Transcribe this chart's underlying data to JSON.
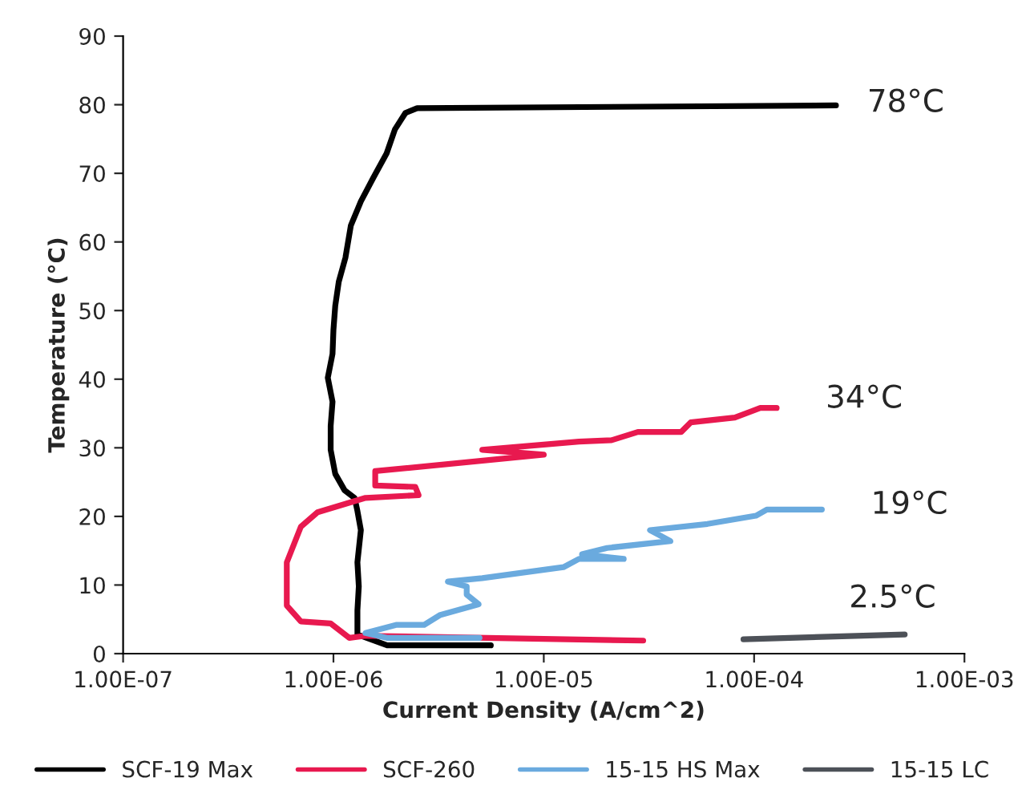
{
  "chart_data": {
    "type": "line",
    "xlabel": "Current Density (A/cm^2)",
    "ylabel": "Temperature (°C)",
    "log": "x",
    "xlim": [
      1e-07,
      0.001
    ],
    "xticks": [
      {
        "value": 1e-07,
        "label": "1.00E-07"
      },
      {
        "value": 1e-06,
        "label": "1.00E-06"
      },
      {
        "value": 1e-05,
        "label": "1.00E-05"
      },
      {
        "value": 0.0001,
        "label": "1.00E-04"
      },
      {
        "value": 0.001,
        "label": "1.00E-03"
      }
    ],
    "ylim": [
      0,
      90
    ],
    "yticks": [
      0,
      10,
      20,
      30,
      40,
      50,
      60,
      70,
      80,
      90
    ],
    "grid": false,
    "legend": "bottom",
    "marker": "none",
    "line_style": "solid",
    "series": [
      {
        "name": "SCF-19 Max",
        "color": "#000000",
        "x": [
          5.6e-06,
          1.8e-06,
          1.3e-06,
          1.3e-06,
          1.32e-06,
          1.3e-06,
          1.35e-06,
          1.3e-06,
          1.26e-06,
          1.13e-06,
          1.02e-06,
          9.7e-07,
          9.7e-07,
          9.9e-07,
          9.4e-07,
          9.9e-07,
          1e-06,
          1.02e-06,
          1.06e-06,
          1.14e-06,
          1.21e-06,
          1.35e-06,
          1.55e-06,
          1.79e-06,
          1.96e-06,
          2.2e-06,
          2.5e-06,
          0.000245
        ],
        "values": [
          1.2,
          1.2,
          2.8,
          6.3,
          9.8,
          13.3,
          18.0,
          20.8,
          22.7,
          23.8,
          26.2,
          29.7,
          33.2,
          36.7,
          40.2,
          43.7,
          47.2,
          50.7,
          54.2,
          57.7,
          62.4,
          65.9,
          69.4,
          72.9,
          76.4,
          78.8,
          79.5,
          79.9
        ]
      },
      {
        "name": "SCF-260",
        "color": "#e8194f",
        "x": [
          2.97e-05,
          1.42e-06,
          1.19e-06,
          9.7e-07,
          7e-07,
          6e-07,
          6e-07,
          7e-07,
          8.4e-07,
          1.42e-06,
          2.54e-06,
          2.45e-06,
          1.58e-06,
          1.58e-06,
          1e-05,
          5.1e-06,
          1.47e-05,
          2.1e-05,
          2.8e-05,
          4.5e-05,
          5e-05,
          8.1e-05,
          0.000107,
          0.000128
        ],
        "values": [
          1.9,
          2.6,
          2.3,
          4.4,
          4.7,
          7.0,
          13.3,
          18.5,
          20.6,
          22.7,
          23.1,
          24.3,
          24.5,
          26.6,
          29.0,
          29.7,
          30.9,
          31.1,
          32.3,
          32.3,
          33.7,
          34.4,
          35.8,
          35.8
        ]
      },
      {
        "name": "15-15 HS Max",
        "color": "#6aaade",
        "x": [
          4.95e-06,
          1.79e-06,
          1.42e-06,
          2e-06,
          2.7e-06,
          3.2e-06,
          4.9e-06,
          4.3e-06,
          4.3e-06,
          3.5e-06,
          5.1e-06,
          1.24e-05,
          1.47e-05,
          2.4e-05,
          1.52e-05,
          2e-05,
          4e-05,
          3.2e-05,
          6e-05,
          0.000102,
          0.000115,
          0.00021
        ],
        "values": [
          2.3,
          2.3,
          3.0,
          4.2,
          4.2,
          5.6,
          7.2,
          8.6,
          9.8,
          10.5,
          11.0,
          12.6,
          13.8,
          13.8,
          14.5,
          15.4,
          16.4,
          18.0,
          18.9,
          20.1,
          21.0,
          21.0
        ]
      },
      {
        "name": "15-15 LC",
        "color": "#4d5158",
        "x": [
          8.9e-05,
          0.00052
        ],
        "values": [
          2.1,
          2.8
        ]
      }
    ],
    "annotations": [
      "78°C",
      "34°C",
      "19°C",
      "2.5°C"
    ]
  }
}
